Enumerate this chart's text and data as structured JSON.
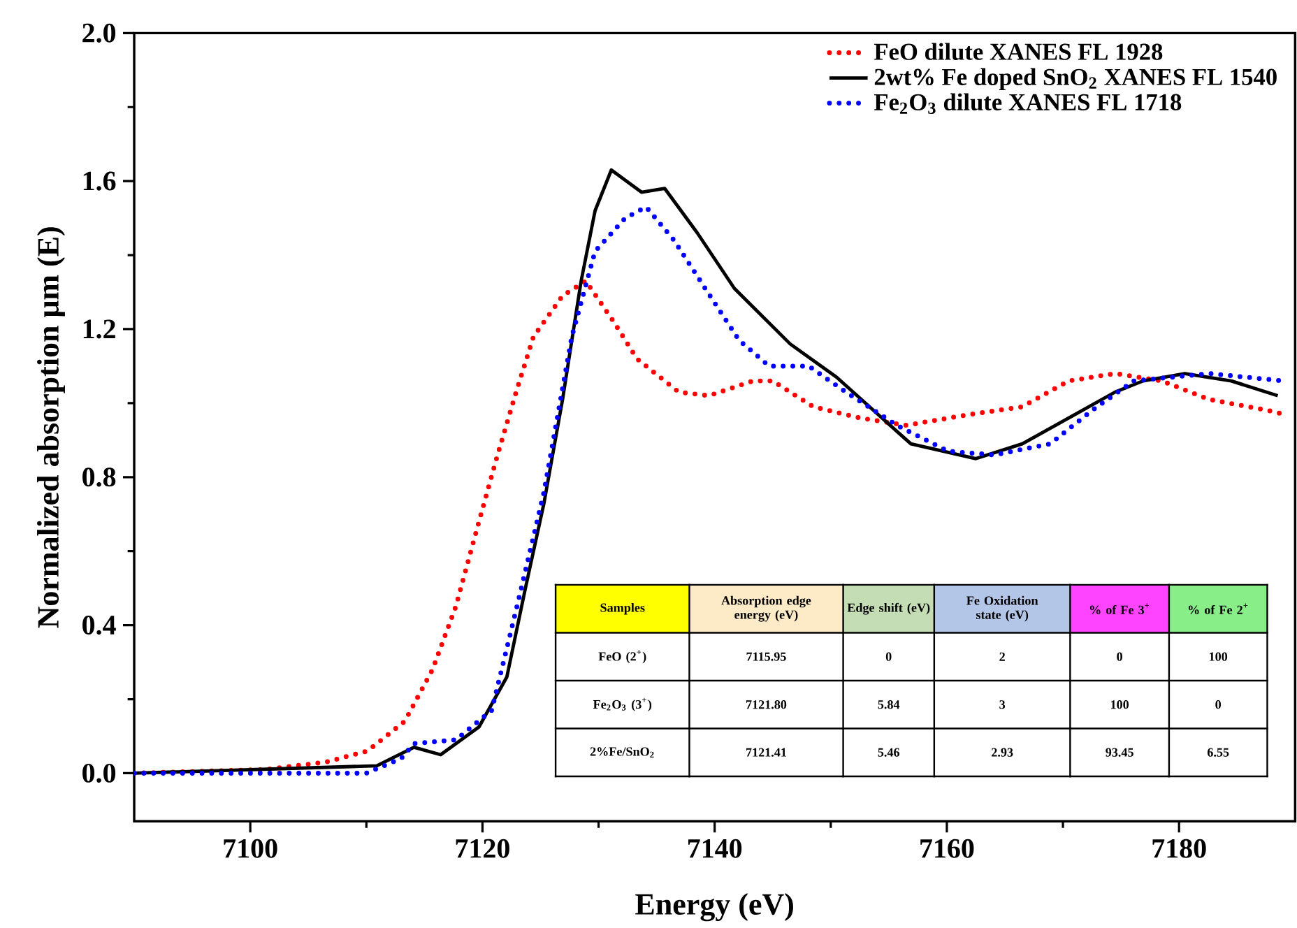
{
  "chart_data": {
    "type": "line",
    "xlabel": "Energy (eV)",
    "ylabel": "Normalized absorption μm (E)",
    "xlim": [
      7090,
      7190
    ],
    "xticks": [
      7100,
      7120,
      7140,
      7160,
      7180
    ],
    "ylim": [
      -0.13,
      2.0
    ],
    "yticks": [
      {
        "value": 0,
        "label": "0.0"
      },
      {
        "value": 0.4,
        "label": "0.4"
      },
      {
        "value": 0.8,
        "label": "0.8"
      },
      {
        "value": 1.2,
        "label": "1.2"
      },
      {
        "value": 1.6,
        "label": "1.6"
      },
      {
        "value": 2.0,
        "label": "2.0"
      }
    ],
    "legend": "top right",
    "series": [
      {
        "name": "FeO dilute XANES FL 1928",
        "color": "#ff0000",
        "line_style": "dotted",
        "x": [
          7090,
          7101.3,
          7106.5,
          7110.1,
          7113.3,
          7115.7,
          7117.7,
          7119.7,
          7121.3,
          7122.9,
          7124.4,
          7126.9,
          7128.9,
          7131.3,
          7133.3,
          7136.9,
          7139.5,
          7143.3,
          7145,
          7148.5,
          7152.5,
          7156.5,
          7162.1,
          7166.5,
          7170.5,
          7174.5,
          7178.5,
          7182.6,
          7187.7,
          7189
        ],
        "values": [
          0,
          0.01,
          0.03,
          0.06,
          0.14,
          0.28,
          0.45,
          0.68,
          0.86,
          1.03,
          1.18,
          1.29,
          1.33,
          1.22,
          1.12,
          1.03,
          1.02,
          1.06,
          1.06,
          0.99,
          0.96,
          0.94,
          0.97,
          0.99,
          1.06,
          1.08,
          1.06,
          1.01,
          0.98,
          0.97
        ]
      },
      {
        "name": "2wt% Fe doped SnO$_{2}$ XANES FL 1540",
        "color": "#000000",
        "line_style": "solid",
        "x": [
          7090,
          7110.9,
          7114.1,
          7116.4,
          7119.7,
          7122.1,
          7123.7,
          7125.3,
          7126.9,
          7128.5,
          7129.7,
          7131.1,
          7133.7,
          7135.7,
          7138.5,
          7141.7,
          7146.5,
          7150.5,
          7153.7,
          7156.9,
          7162.5,
          7166.5,
          7170.5,
          7174.5,
          7176.9,
          7180.5,
          7184.5,
          7188.5
        ],
        "values": [
          0,
          0.02,
          0.07,
          0.05,
          0.125,
          0.26,
          0.5,
          0.73,
          1.01,
          1.33,
          1.52,
          1.63,
          1.57,
          1.58,
          1.46,
          1.31,
          1.16,
          1.07,
          0.98,
          0.89,
          0.85,
          0.89,
          0.96,
          1.03,
          1.06,
          1.08,
          1.06,
          1.02
        ]
      },
      {
        "name": "Fe$_{2}$O$_{3}$ dilute XANES FL 1718",
        "color": "#0000ff",
        "line_style": "dotted",
        "x": [
          7090,
          7110,
          7113.0,
          7114.1,
          7117.7,
          7120.8,
          7123.2,
          7125.3,
          7127.7,
          7129.7,
          7132.3,
          7134.1,
          7136.5,
          7139.6,
          7142.1,
          7144.7,
          7148.1,
          7151.3,
          7155.7,
          7160.1,
          7164.1,
          7168.9,
          7172.5,
          7176.1,
          7182.6,
          7189
        ],
        "values": [
          0,
          0.0,
          0.04,
          0.08,
          0.09,
          0.17,
          0.48,
          0.76,
          1.18,
          1.41,
          1.5,
          1.53,
          1.44,
          1.29,
          1.17,
          1.1,
          1.1,
          1.03,
          0.94,
          0.87,
          0.86,
          0.89,
          0.98,
          1.06,
          1.08,
          1.06
        ]
      }
    ],
    "annotations": [
      "Samples",
      "Absorption edge energy (eV)",
      "Edge shift (eV)",
      "Fe Oxidation state (eV)",
      "% of Fe 3$^{+}$",
      "% of Fe 2$^{+}$",
      "FeO (2$^{+}$)",
      "7115.95",
      "0",
      "2",
      "0",
      "100",
      "Fe$_{2}$O$_{3}$ (3$^{+}$)",
      "7121.80",
      "5.84",
      "3",
      "100",
      "0",
      "2%Fe/SnO$_{2}$",
      "7121.41",
      "5.46",
      "2.93",
      "93.45",
      "6.55"
    ]
  }
}
